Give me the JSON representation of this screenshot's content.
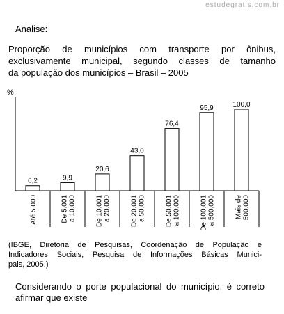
{
  "watermark": "estudegratis.com.br",
  "intro": "Analise:",
  "question": {
    "lines": [
      "Proporção de municípios com transporte por ônibus,",
      "exclusivamente municipal, segundo classes de tamanho",
      "da população dos municípios – Brasil – 2005"
    ]
  },
  "chart": {
    "type": "bar",
    "ylabel": "%",
    "categories": [
      [
        "Até 5.000"
      ],
      [
        "De 5.001",
        "a 10.000"
      ],
      [
        "De 10.001",
        "a 20.000"
      ],
      [
        "De 20.001",
        "a 50.000"
      ],
      [
        "De 50.001",
        "a 100.000"
      ],
      [
        "De 100.001",
        "a 500.000"
      ],
      [
        "Mais de",
        "500.000"
      ]
    ],
    "values": [
      6.2,
      9.9,
      20.6,
      43.0,
      76.4,
      95.9,
      100.0
    ],
    "value_labels": [
      "6,2",
      "9,9",
      "20,6",
      "43,0",
      "76,4",
      "95,9",
      "100,0"
    ],
    "ylim": [
      0,
      100
    ],
    "color": "#ffffff"
  },
  "source": {
    "lines": [
      "(IBGE, Diretoria de Pesquisas, Coordenação de População e",
      "Indicadores Sociais, Pesquisa de Informações Básicas Munici-",
      "pais, 2005.)"
    ]
  },
  "prompt": {
    "lines": [
      "Considerando o porte populacional do município, é correto",
      "afirmar que existe"
    ]
  }
}
